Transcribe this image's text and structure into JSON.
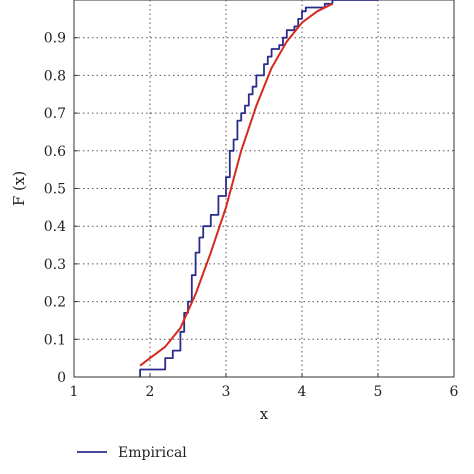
{
  "chart_data": {
    "type": "line",
    "xlabel": "x",
    "ylabel": "F (x)",
    "xlim": [
      1,
      6
    ],
    "ylim": [
      0,
      1
    ],
    "grid": true,
    "legend_position": "bottom",
    "x_ticks": [
      1,
      2,
      3,
      4,
      5,
      6
    ],
    "y_ticks": [
      0,
      0.1,
      0.2,
      0.3,
      0.4,
      0.5,
      0.6,
      0.7,
      0.8,
      0.9
    ],
    "x_tick_labels": [
      "1",
      "2",
      "3",
      "4",
      "5",
      "6"
    ],
    "y_tick_labels": [
      "0",
      "0.1",
      "0.2",
      "0.3",
      "0.4",
      "0.5",
      "0.6",
      "0.7",
      "0.8",
      "0.9"
    ],
    "series": [
      {
        "name": "Empirical",
        "color": "#2b2b8c",
        "step": true,
        "x": [
          1.87,
          2.0,
          2.2,
          2.3,
          2.4,
          2.45,
          2.5,
          2.55,
          2.6,
          2.65,
          2.7,
          2.8,
          2.9,
          3.0,
          3.05,
          3.1,
          3.15,
          3.2,
          3.25,
          3.3,
          3.35,
          3.4,
          3.5,
          3.55,
          3.6,
          3.7,
          3.75,
          3.8,
          3.9,
          3.95,
          4.0,
          4.05,
          4.1,
          4.3,
          4.4,
          5.0
        ],
        "y": [
          0.02,
          0.02,
          0.05,
          0.07,
          0.12,
          0.17,
          0.2,
          0.27,
          0.33,
          0.37,
          0.4,
          0.43,
          0.48,
          0.53,
          0.6,
          0.63,
          0.68,
          0.7,
          0.72,
          0.75,
          0.77,
          0.8,
          0.83,
          0.85,
          0.87,
          0.88,
          0.9,
          0.92,
          0.93,
          0.95,
          0.97,
          0.98,
          0.98,
          0.99,
          1.0,
          1.0
        ]
      },
      {
        "name": "",
        "color": "#d62a1e",
        "step": false,
        "x": [
          1.87,
          2.0,
          2.2,
          2.4,
          2.6,
          2.8,
          3.0,
          3.2,
          3.4,
          3.6,
          3.8,
          4.0,
          4.2,
          4.4
        ],
        "y": [
          0.03,
          0.05,
          0.08,
          0.13,
          0.22,
          0.33,
          0.45,
          0.6,
          0.72,
          0.82,
          0.89,
          0.94,
          0.97,
          0.99
        ]
      }
    ],
    "legend": {
      "visible_label": "Empirical"
    }
  }
}
